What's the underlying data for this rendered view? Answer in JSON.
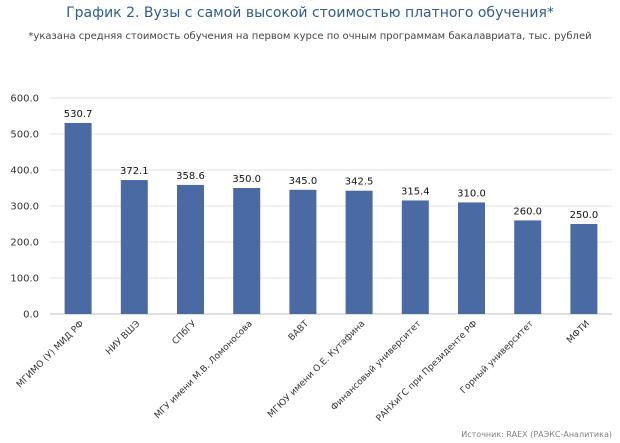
{
  "chart_data": {
    "type": "bar",
    "title": "График 2. Вузы с самой высокой стоимостью платного обучения*",
    "subtitle": "*указана средняя стоимость обучения на первом курсе по очным программам бакалавриата, тыс. рублей",
    "source": "Источник: RAEX (РАЭКС-Аналитика)",
    "categories": [
      "МГИМО (У) МИД РФ",
      "НИУ ВШЭ",
      "СПбГУ",
      "МГУ имени М.В. Ломоносова",
      "ВАВТ",
      "МГЮУ имени О.Е. Кутафина",
      "Финансовый университет",
      "РАНХиГС при Президенте РФ",
      "Горный университет",
      "МФТИ"
    ],
    "values": [
      530.7,
      372.1,
      358.6,
      350.0,
      345.0,
      342.5,
      315.4,
      310.0,
      260.0,
      250.0
    ],
    "value_labels": [
      "530.7",
      "372.1",
      "358.6",
      "350.0",
      "345.0",
      "342.5",
      "315.4",
      "310.0",
      "260.0",
      "250.0"
    ],
    "y_ticks": [
      "0.0",
      "100.0",
      "200.0",
      "300.0",
      "400.0",
      "500.0",
      "600.0"
    ],
    "ylim": [
      0,
      600
    ],
    "xlabel": "",
    "ylabel": "",
    "grid": true,
    "legend": "none",
    "bar_color": "#4a6aa4",
    "grid_color": "#e3e3e3"
  }
}
